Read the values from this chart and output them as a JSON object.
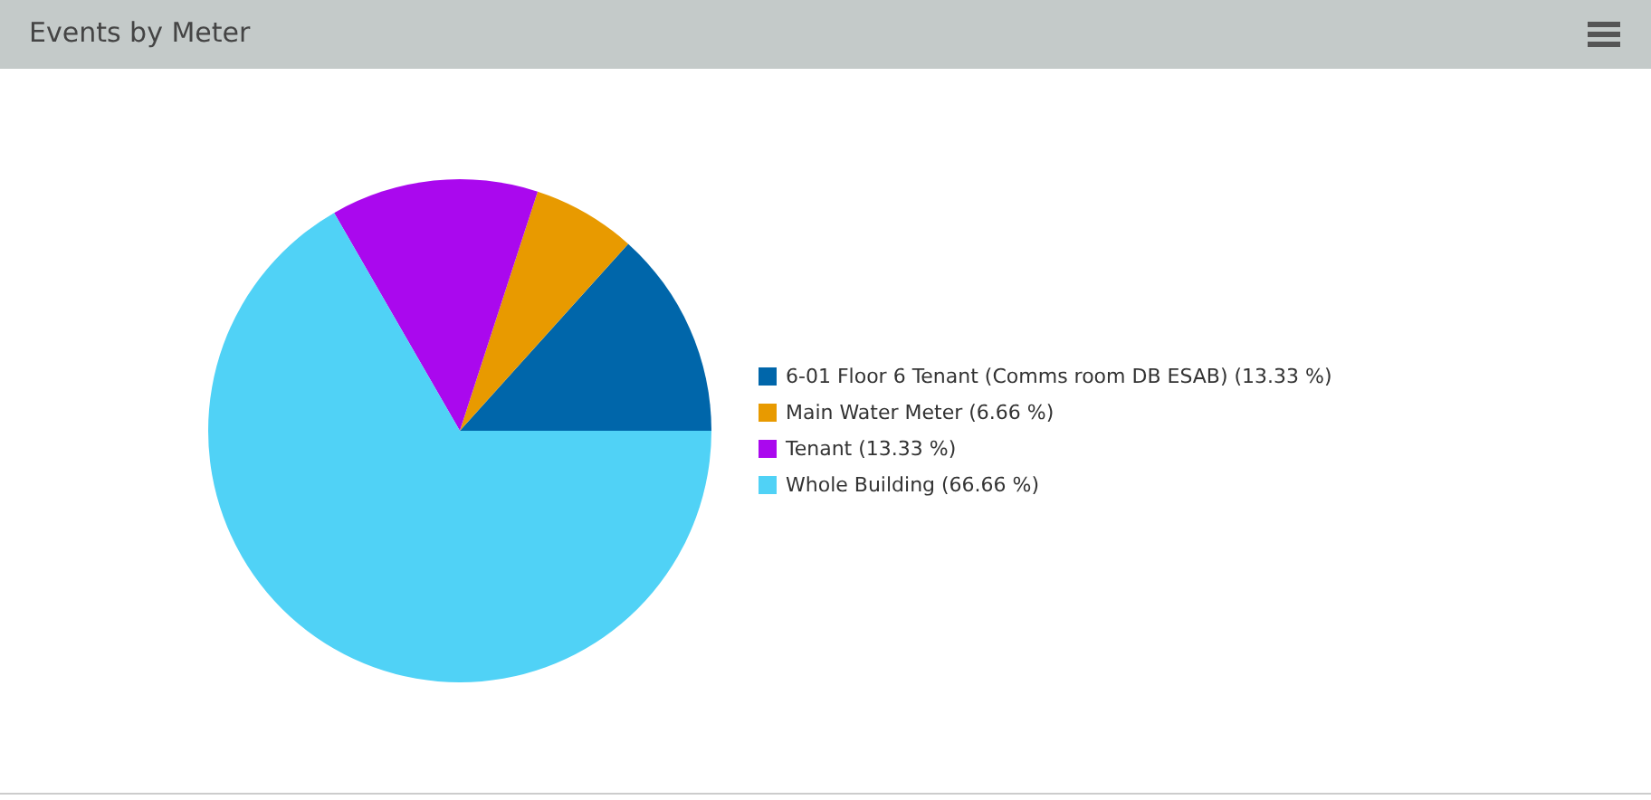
{
  "chart_data": {
    "type": "pie",
    "title": "Events by Meter",
    "categories": [
      "6-01 Floor 6 Tenant (Comms room DB ESAB) (13.33 %)",
      "Main Water Meter (6.66 %)",
      "Tenant (13.33 %)",
      "Whole Building (66.66 %)"
    ],
    "values": [
      13.33,
      6.66,
      13.33,
      66.66
    ],
    "colors": [
      "#0066aa",
      "#e89a00",
      "#aa08ee",
      "#50d2f6"
    ],
    "legend": "right"
  }
}
